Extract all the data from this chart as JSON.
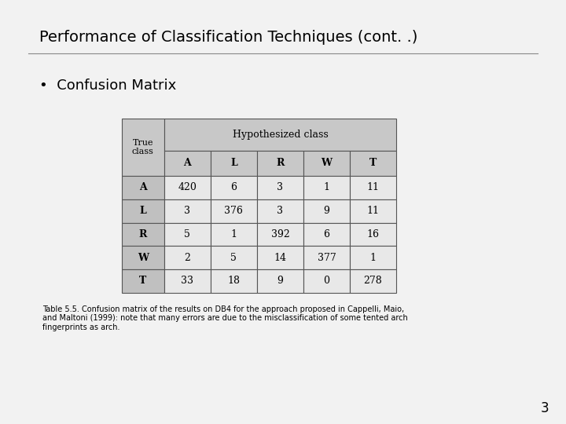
{
  "title": "Performance of Classification Techniques (cont. .)",
  "bullet": "Confusion Matrix",
  "page_number": "3",
  "hyp_header": "Hypothesized class",
  "row_labels": [
    "A",
    "L",
    "R",
    "W",
    "T"
  ],
  "col_labels": [
    "A",
    "L",
    "R",
    "W",
    "T"
  ],
  "matrix": [
    [
      420,
      6,
      3,
      1,
      11
    ],
    [
      3,
      376,
      3,
      9,
      11
    ],
    [
      5,
      1,
      392,
      6,
      16
    ],
    [
      2,
      5,
      14,
      377,
      1
    ],
    [
      33,
      18,
      9,
      0,
      278
    ]
  ],
  "caption_line1": "Table 5.5. Confusion matrix of the results on DB4 for the approach proposed in Cappelli, Maio,",
  "caption_line2": "and Maltoni (1999): note that many errors are due to the misclassification of some tented arch",
  "caption_line3": "fingerprints as arch.",
  "header_color": "#c8c8c8",
  "row_label_color": "#c0c0c0",
  "cell_color": "#e8e8e8",
  "border_color": "#555555",
  "slide_bg": "#f2f2f2"
}
